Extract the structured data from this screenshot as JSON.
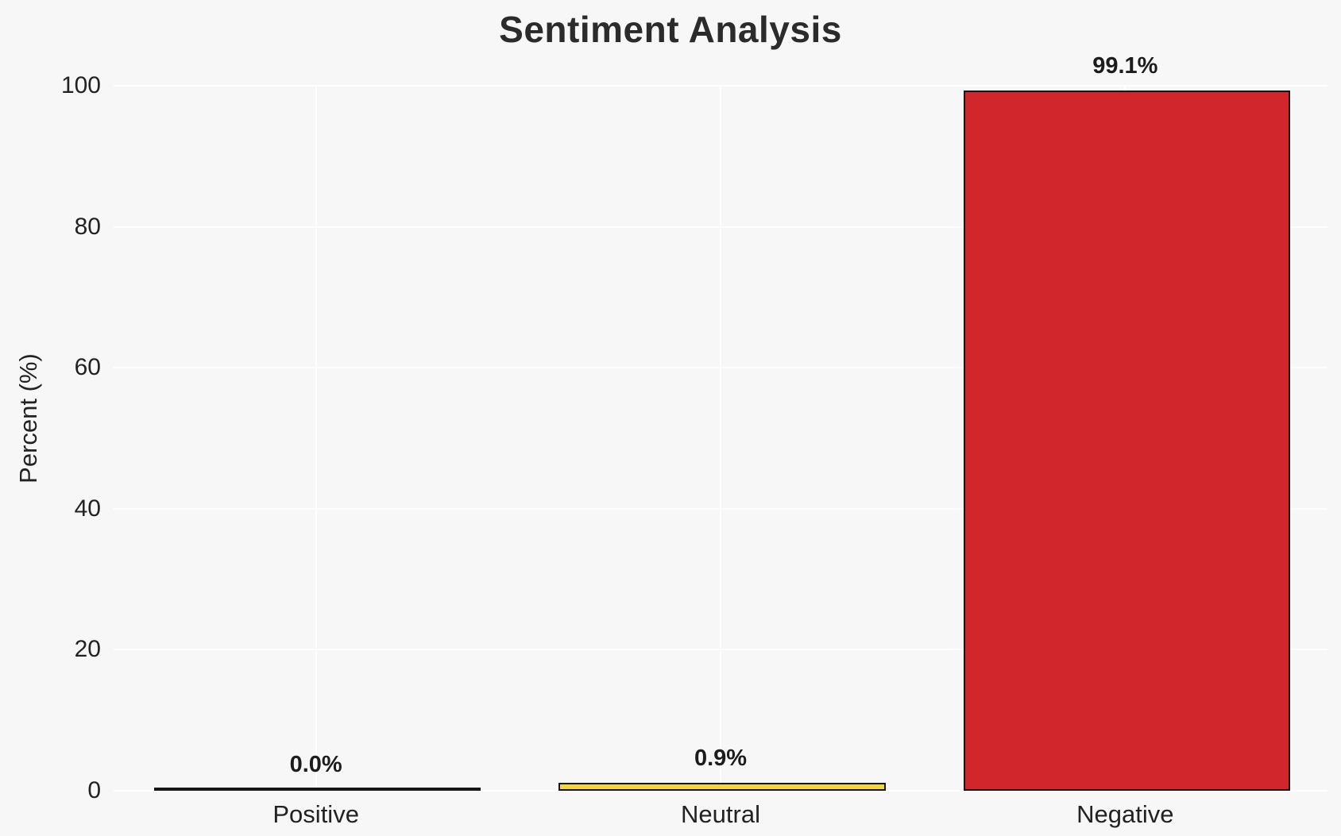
{
  "chart_data": {
    "type": "bar",
    "title": "Sentiment Analysis",
    "xlabel": "",
    "ylabel": "Percent (%)",
    "categories": [
      "Positive",
      "Neutral",
      "Negative"
    ],
    "values": [
      0.0,
      0.9,
      99.1
    ],
    "value_labels": [
      "0.0%",
      "0.9%",
      "99.1%"
    ],
    "bar_colors": [
      "#f7f7f8",
      "#f3d53d",
      "#d1262b"
    ],
    "bar_edge_color": "#161616",
    "ylim": [
      0,
      100
    ],
    "yticks": [
      0,
      20,
      40,
      60,
      80,
      100
    ],
    "grid": true,
    "legend": "none",
    "background_color": "#f7f7f8",
    "gridline_color": "#ffffff"
  }
}
